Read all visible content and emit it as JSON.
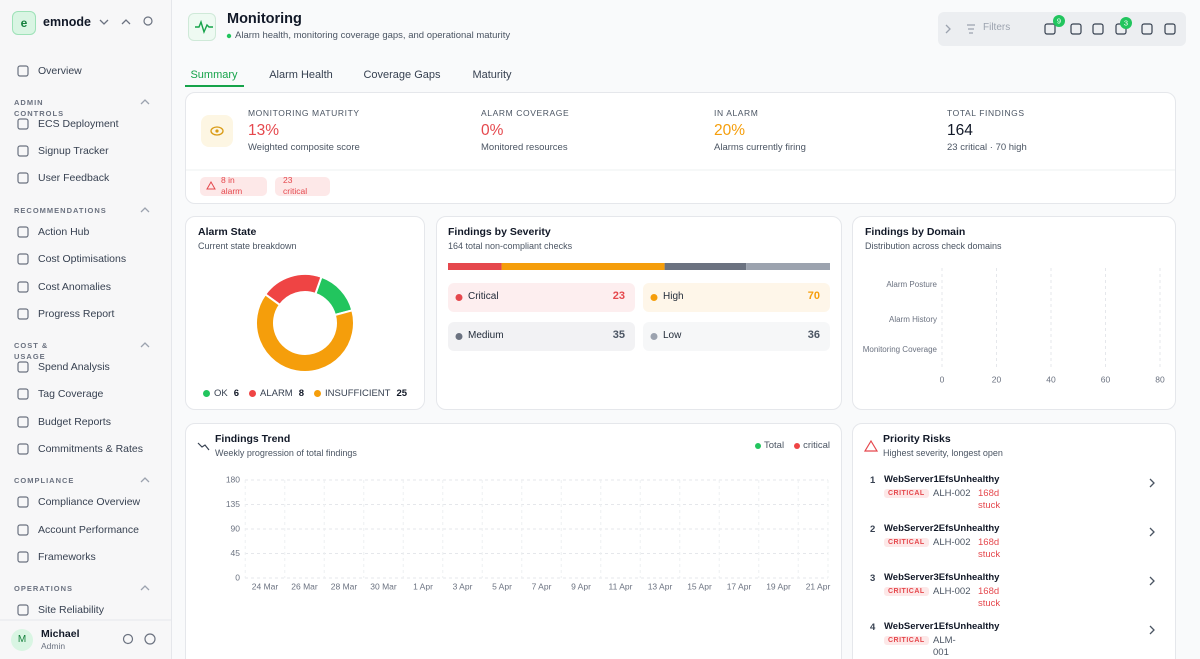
{
  "sidebar": {
    "logo": "e",
    "brand": "emnode",
    "overview": "Overview",
    "sections": [
      {
        "title": "ADMIN CONTROLS",
        "items": [
          "ECS Deployment",
          "Signup Tracker",
          "User Feedback"
        ]
      },
      {
        "title": "RECOMMENDATIONS",
        "items": [
          "Action Hub",
          "Cost Optimisations",
          "Cost Anomalies",
          "Progress Report"
        ]
      },
      {
        "title": "COST & USAGE",
        "items": [
          "Spend Analysis",
          "Tag Coverage",
          "Budget Reports",
          "Commitments & Rates"
        ]
      },
      {
        "title": "COMPLIANCE",
        "items": [
          "Compliance Overview",
          "Account Performance",
          "Frameworks"
        ]
      },
      {
        "title": "OPERATIONS",
        "items": [
          "Site Reliability"
        ]
      }
    ],
    "user": {
      "avatar": "M",
      "name": "Michael",
      "role": "Admin"
    }
  },
  "header": {
    "title": "Monitoring",
    "subtitle": "Alarm health, monitoring coverage gaps, and operational maturity",
    "filters": "Filters",
    "rocket_badge": "9",
    "bell_badge": "3"
  },
  "tabs": [
    "Summary",
    "Alarm Health",
    "Coverage Gaps",
    "Maturity"
  ],
  "kpis": [
    {
      "label": "MONITORING MATURITY",
      "value": "13%",
      "note": "Weighted composite score",
      "color": "#e5484d"
    },
    {
      "label": "ALARM COVERAGE",
      "value": "0%",
      "note": "Monitored resources",
      "color": "#e5484d"
    },
    {
      "label": "IN ALARM",
      "value": "20%",
      "note": "Alarms currently firing",
      "color": "#f59e0b"
    },
    {
      "label": "TOTAL FINDINGS",
      "value": "164",
      "note": "23 critical · 70 high",
      "color": "#111827"
    }
  ],
  "chips": [
    "8 in alarm",
    "23 critical"
  ],
  "panels": {
    "alarm_state": {
      "title": "Alarm State",
      "subtitle": "Current state breakdown"
    },
    "severity": {
      "title": "Findings by Severity",
      "subtitle": "164 total non-compliant checks"
    },
    "domain": {
      "title": "Findings by Domain",
      "subtitle": "Distribution across check domains"
    },
    "trend": {
      "title": "Findings Trend",
      "subtitle": "Weekly progression of total findings"
    },
    "risks": {
      "title": "Priority Risks",
      "subtitle": "Highest severity, longest open"
    }
  },
  "chart_data": [
    {
      "type": "pie",
      "donut": true,
      "categories": [
        "OK",
        "ALARM",
        "INSUFFICIENT"
      ],
      "values": [
        6,
        8,
        25
      ],
      "colors": [
        "#22c55e",
        "#ef4444",
        "#f59e0b"
      ]
    },
    {
      "type": "stacked_bar",
      "categories": [
        "Critical",
        "High",
        "Medium",
        "Low"
      ],
      "values": [
        23,
        70,
        35,
        36
      ],
      "colors": [
        "#e5484d",
        "#f59e0b",
        "#6b7280",
        "#9ca3af"
      ]
    },
    {
      "type": "bar",
      "orientation": "horizontal",
      "categories": [
        "Alarm Posture",
        "Alarm History",
        "Monitoring Coverage"
      ],
      "values": [
        0,
        0,
        0
      ],
      "xlim": [
        0,
        80
      ],
      "xticks": [
        0,
        20,
        40,
        60,
        80
      ],
      "grid": true
    },
    {
      "type": "line",
      "categories": [
        "24 Mar",
        "26 Mar",
        "28 Mar",
        "30 Mar",
        "1 Apr",
        "3 Apr",
        "5 Apr",
        "7 Apr",
        "9 Apr",
        "11 Apr",
        "13 Apr",
        "15 Apr",
        "17 Apr",
        "19 Apr",
        "21 Apr"
      ],
      "series": [
        {
          "name": "Total",
          "color": "#22c55e",
          "values": [
            null,
            null,
            null,
            null,
            null,
            null,
            null,
            null,
            null,
            null,
            null,
            null,
            null,
            null,
            null
          ]
        },
        {
          "name": "critical",
          "color": "#ef4444",
          "values": [
            null,
            null,
            null,
            null,
            null,
            null,
            null,
            null,
            null,
            null,
            null,
            null,
            null,
            null,
            null
          ]
        }
      ],
      "ylim": [
        0,
        180
      ],
      "yticks": [
        0,
        45,
        90,
        135,
        180
      ],
      "grid": true
    }
  ],
  "risks": [
    {
      "rank": 1,
      "name": "WebServer1EfsUnhealthy",
      "severity": "CRITICAL",
      "id": "ALH-002",
      "age": "168d stuck"
    },
    {
      "rank": 2,
      "name": "WebServer2EfsUnhealthy",
      "severity": "CRITICAL",
      "id": "ALH-002",
      "age": "168d stuck"
    },
    {
      "rank": 3,
      "name": "WebServer3EfsUnhealthy",
      "severity": "CRITICAL",
      "id": "ALH-002",
      "age": "168d stuck"
    },
    {
      "rank": 4,
      "name": "WebServer1EfsUnhealthy",
      "severity": "CRITICAL",
      "id": "ALM-001"
    }
  ]
}
